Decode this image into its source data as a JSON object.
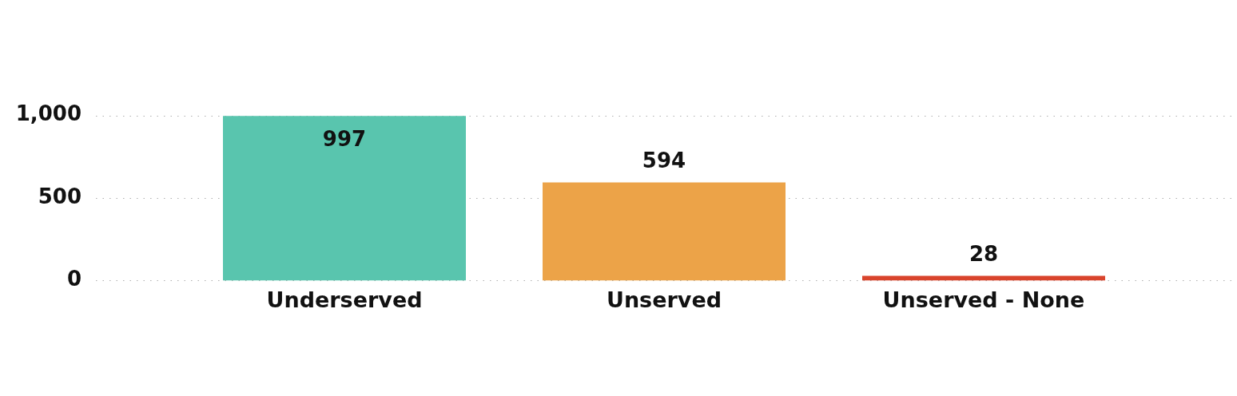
{
  "chart_data": {
    "type": "bar",
    "categories": [
      "Underserved",
      "Unserved",
      "Unserved - None"
    ],
    "values": [
      997,
      594,
      28
    ],
    "colors": [
      "#59c5ae",
      "#eca348",
      "#d9442c"
    ],
    "ylim": [
      0,
      1000
    ],
    "yticks": [
      0,
      {
        "value": 500,
        "label": "500"
      },
      {
        "value": 1000,
        "label": "1,000"
      }
    ],
    "grid": "y",
    "data_labels": true,
    "legend": false
  }
}
